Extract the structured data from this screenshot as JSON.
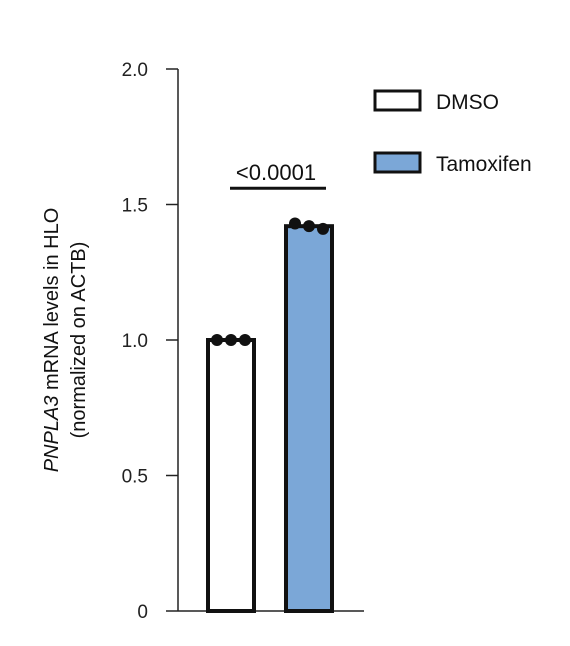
{
  "chart_data": {
    "type": "bar",
    "title": "",
    "xlabel": "",
    "ylabel_italic_part": "PNPLA3",
    "ylabel_line1_rest": " mRNA levels in HLO",
    "ylabel_line2": "(normalized on ACTB)",
    "ylim": [
      0,
      2.0
    ],
    "yticks": [
      0,
      0.5,
      1.0,
      1.5,
      2.0
    ],
    "ytick_labels": [
      "0",
      "0.5",
      "1.0",
      "1.5",
      "2.0"
    ],
    "categories": [
      "DMSO",
      "Tamoxifen"
    ],
    "series": [
      {
        "name": "DMSO",
        "value": 1.0,
        "points": [
          1.0,
          1.0,
          1.0
        ],
        "color": "#ffffff"
      },
      {
        "name": "Tamoxifen",
        "value": 1.42,
        "points": [
          1.43,
          1.42,
          1.41
        ],
        "color": "#7ba7d7"
      }
    ],
    "annotation": {
      "text": "<0.0001",
      "y": 1.56
    },
    "legend_placement": "top-right",
    "grid": false
  }
}
